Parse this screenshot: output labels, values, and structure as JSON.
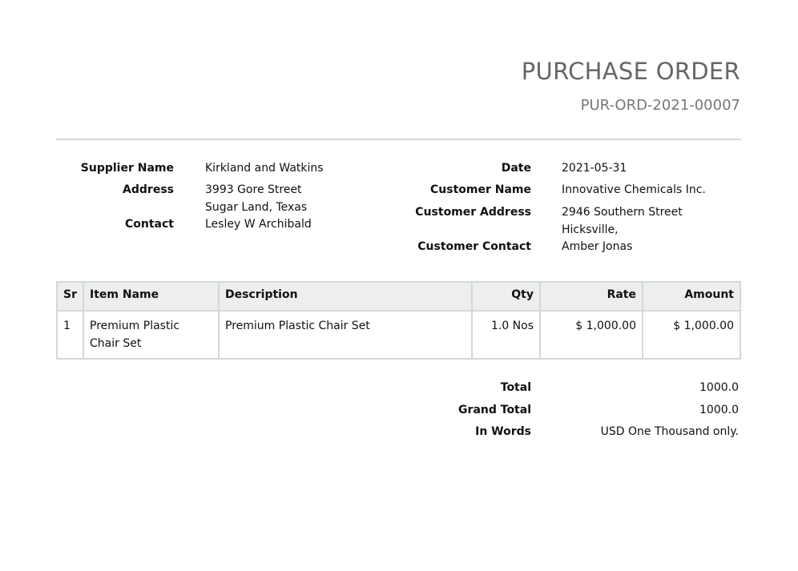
{
  "header": {
    "title": "PURCHASE ORDER",
    "number": "PUR-ORD-2021-00007"
  },
  "supplier": {
    "name_label": "Supplier Name",
    "name": "Kirkland and Watkins",
    "address_label": "Address",
    "address_line1": "3993 Gore Street",
    "address_line2": "Sugar Land, Texas",
    "contact_label": "Contact",
    "contact": "Lesley W Archibald"
  },
  "customer": {
    "date_label": "Date",
    "date": "2021-05-31",
    "name_label": "Customer Name",
    "name": "Innovative Chemicals Inc.",
    "address_label": "Customer Address",
    "address_line1": "2946 Southern Street",
    "address_line2": "Hicksville,",
    "contact_label": "Customer Contact",
    "contact": "Amber Jonas"
  },
  "items": {
    "columns": [
      "Sr",
      "Item Name",
      "Description",
      "Qty",
      "Rate",
      "Amount"
    ],
    "rows": [
      {
        "sr": "1",
        "item_name": "Premium Plastic Chair Set",
        "description": "Premium Plastic Chair Set",
        "qty": "1.0 Nos",
        "rate": "$ 1,000.00",
        "amount": "$ 1,000.00"
      }
    ]
  },
  "totals": {
    "total_label": "Total",
    "total": "1000.0",
    "grand_total_label": "Grand Total",
    "grand_total": "1000.0",
    "in_words_label": "In Words",
    "in_words": "USD One Thousand only."
  }
}
